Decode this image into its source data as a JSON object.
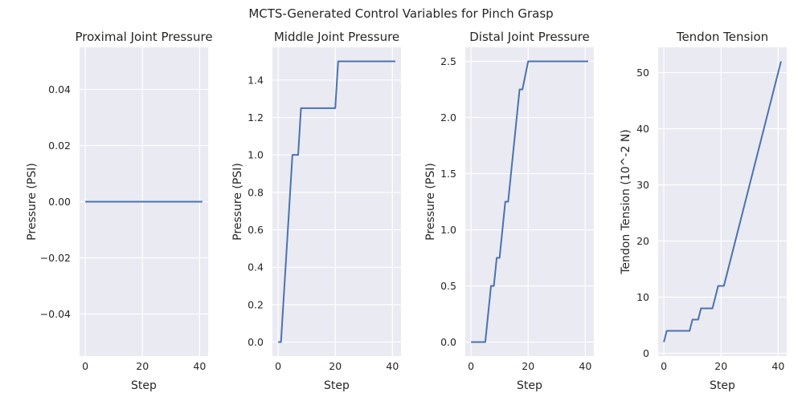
{
  "suptitle": "MCTS-Generated Control Variables for Pinch Grasp",
  "chart_data": [
    {
      "type": "line",
      "title": "Proximal Joint Pressure",
      "xlabel": "Step",
      "ylabel": "Pressure (PSI)",
      "xlim": [
        -2,
        43
      ],
      "ylim": [
        -0.055,
        0.055
      ],
      "xticks": [
        0,
        20,
        40
      ],
      "xtick_labels": [
        "0",
        "20",
        "40"
      ],
      "yticks": [
        -0.04,
        -0.02,
        0.0,
        0.02,
        0.04
      ],
      "ytick_labels": [
        "−0.04",
        "−0.02",
        "0.00",
        "0.02",
        "0.04"
      ],
      "grid": true,
      "series": [
        {
          "x": [
            0,
            41
          ],
          "y": [
            0,
            0
          ]
        }
      ]
    },
    {
      "type": "line",
      "title": "Middle Joint Pressure",
      "xlabel": "Step",
      "ylabel": "Pressure (PSI)",
      "xlim": [
        -2,
        43
      ],
      "ylim": [
        -0.075,
        1.575
      ],
      "xticks": [
        0,
        20,
        40
      ],
      "xtick_labels": [
        "0",
        "20",
        "40"
      ],
      "yticks": [
        0.0,
        0.2,
        0.4,
        0.6,
        0.8,
        1.0,
        1.2,
        1.4
      ],
      "ytick_labels": [
        "0.0",
        "0.2",
        "0.4",
        "0.6",
        "0.8",
        "1.0",
        "1.2",
        "1.4"
      ],
      "grid": true,
      "series": [
        {
          "x": [
            0,
            1,
            5,
            7,
            8,
            20,
            21,
            41
          ],
          "y": [
            0,
            0,
            1.0,
            1.0,
            1.25,
            1.25,
            1.5,
            1.5
          ]
        }
      ]
    },
    {
      "type": "line",
      "title": "Distal Joint Pressure",
      "xlabel": "Step",
      "ylabel": "Pressure (PSI)",
      "xlim": [
        -2,
        43
      ],
      "ylim": [
        -0.125,
        2.625
      ],
      "xticks": [
        0,
        20,
        40
      ],
      "xtick_labels": [
        "0",
        "20",
        "40"
      ],
      "yticks": [
        0.0,
        0.5,
        1.0,
        1.5,
        2.0,
        2.5
      ],
      "ytick_labels": [
        "0.0",
        "0.5",
        "1.0",
        "1.5",
        "2.0",
        "2.5"
      ],
      "grid": true,
      "series": [
        {
          "x": [
            0,
            5,
            7,
            8,
            9,
            10,
            12,
            13,
            17,
            18,
            20,
            41
          ],
          "y": [
            0,
            0,
            0.5,
            0.5,
            0.75,
            0.75,
            1.25,
            1.25,
            2.25,
            2.25,
            2.5,
            2.5
          ]
        }
      ]
    },
    {
      "type": "line",
      "title": "Tendon Tension",
      "xlabel": "Step",
      "ylabel": "Tendon Tension (10^-2 N)",
      "xlim": [
        -2,
        43
      ],
      "ylim": [
        -0.5,
        54.5
      ],
      "xticks": [
        0,
        20,
        40
      ],
      "xtick_labels": [
        "0",
        "20",
        "40"
      ],
      "yticks": [
        0,
        10,
        20,
        30,
        40,
        50
      ],
      "ytick_labels": [
        "0",
        "10",
        "20",
        "30",
        "40",
        "50"
      ],
      "grid": true,
      "series": [
        {
          "x": [
            0,
            1,
            9,
            10,
            12,
            13,
            17,
            19,
            21,
            41
          ],
          "y": [
            2,
            4,
            4,
            6,
            6,
            8,
            8,
            12,
            12,
            52
          ]
        }
      ]
    }
  ]
}
